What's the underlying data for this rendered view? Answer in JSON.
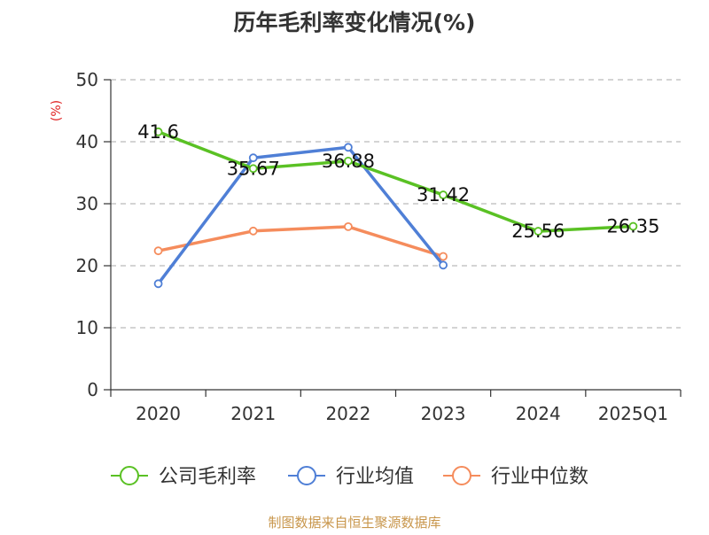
{
  "chart_data": {
    "type": "line",
    "title": "历年毛利率变化情况(%)",
    "ylabel": "(%)",
    "xlabel": "",
    "categories": [
      "2020",
      "2021",
      "2022",
      "2023",
      "2024",
      "2025Q1"
    ],
    "ylim": [
      0,
      50
    ],
    "yticks": [
      0,
      10,
      20,
      30,
      40,
      50
    ],
    "grid": true,
    "legend_position": "bottom",
    "series": [
      {
        "name": "公司毛利率",
        "color": "#5ac124",
        "values": [
          41.6,
          35.67,
          36.88,
          31.42,
          25.56,
          26.35
        ],
        "labels": [
          "41.6",
          "35.67",
          "36.88",
          "31.42",
          "25.56",
          "26.35"
        ]
      },
      {
        "name": "行业均值",
        "color": "#4f7fd6",
        "values": [
          17.1,
          37.4,
          39.1,
          20.1,
          null,
          null
        ]
      },
      {
        "name": "行业中位数",
        "color": "#f58c5c",
        "values": [
          22.4,
          25.6,
          26.3,
          21.5,
          null,
          null
        ]
      }
    ]
  },
  "source_note": "制图数据来自恒生聚源数据库",
  "colors": {
    "title": "#333333",
    "axis": "#333333",
    "ylabel": "#e02020",
    "grid": "#bbbbbb",
    "source": "#c8964b"
  }
}
